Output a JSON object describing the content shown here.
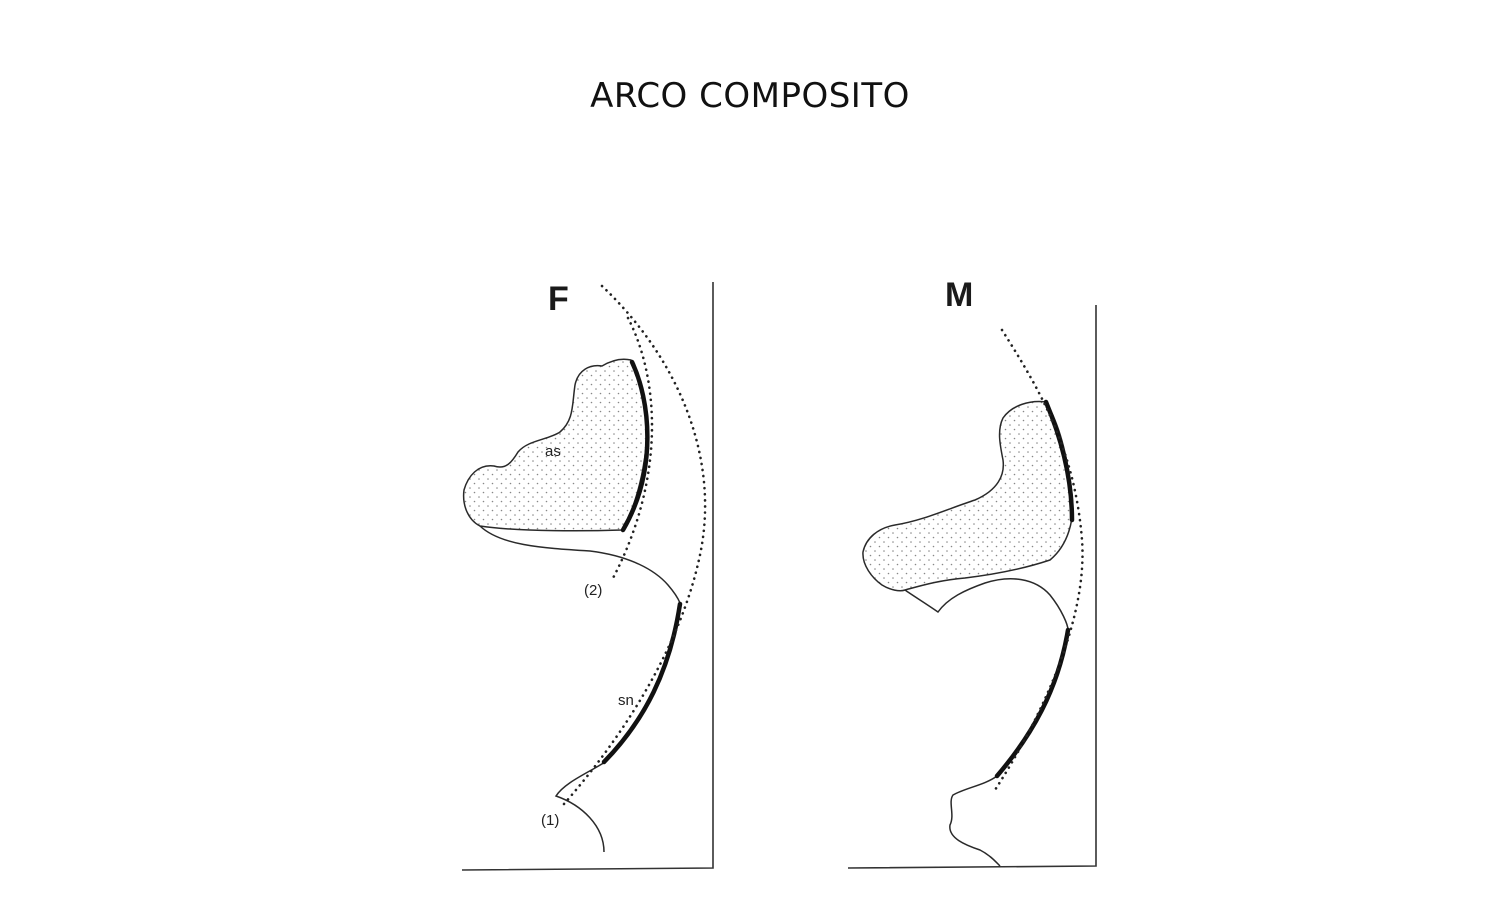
{
  "title": "ARCO COMPOSITO",
  "panels": {
    "female": {
      "letter": "F",
      "labels": {
        "alar": "as",
        "subnasal": "sn",
        "point_1": "(1)",
        "point_2": "(2)"
      }
    },
    "male": {
      "letter": "M"
    }
  },
  "colors": {
    "ink": "#111111",
    "background": "#ffffff"
  }
}
